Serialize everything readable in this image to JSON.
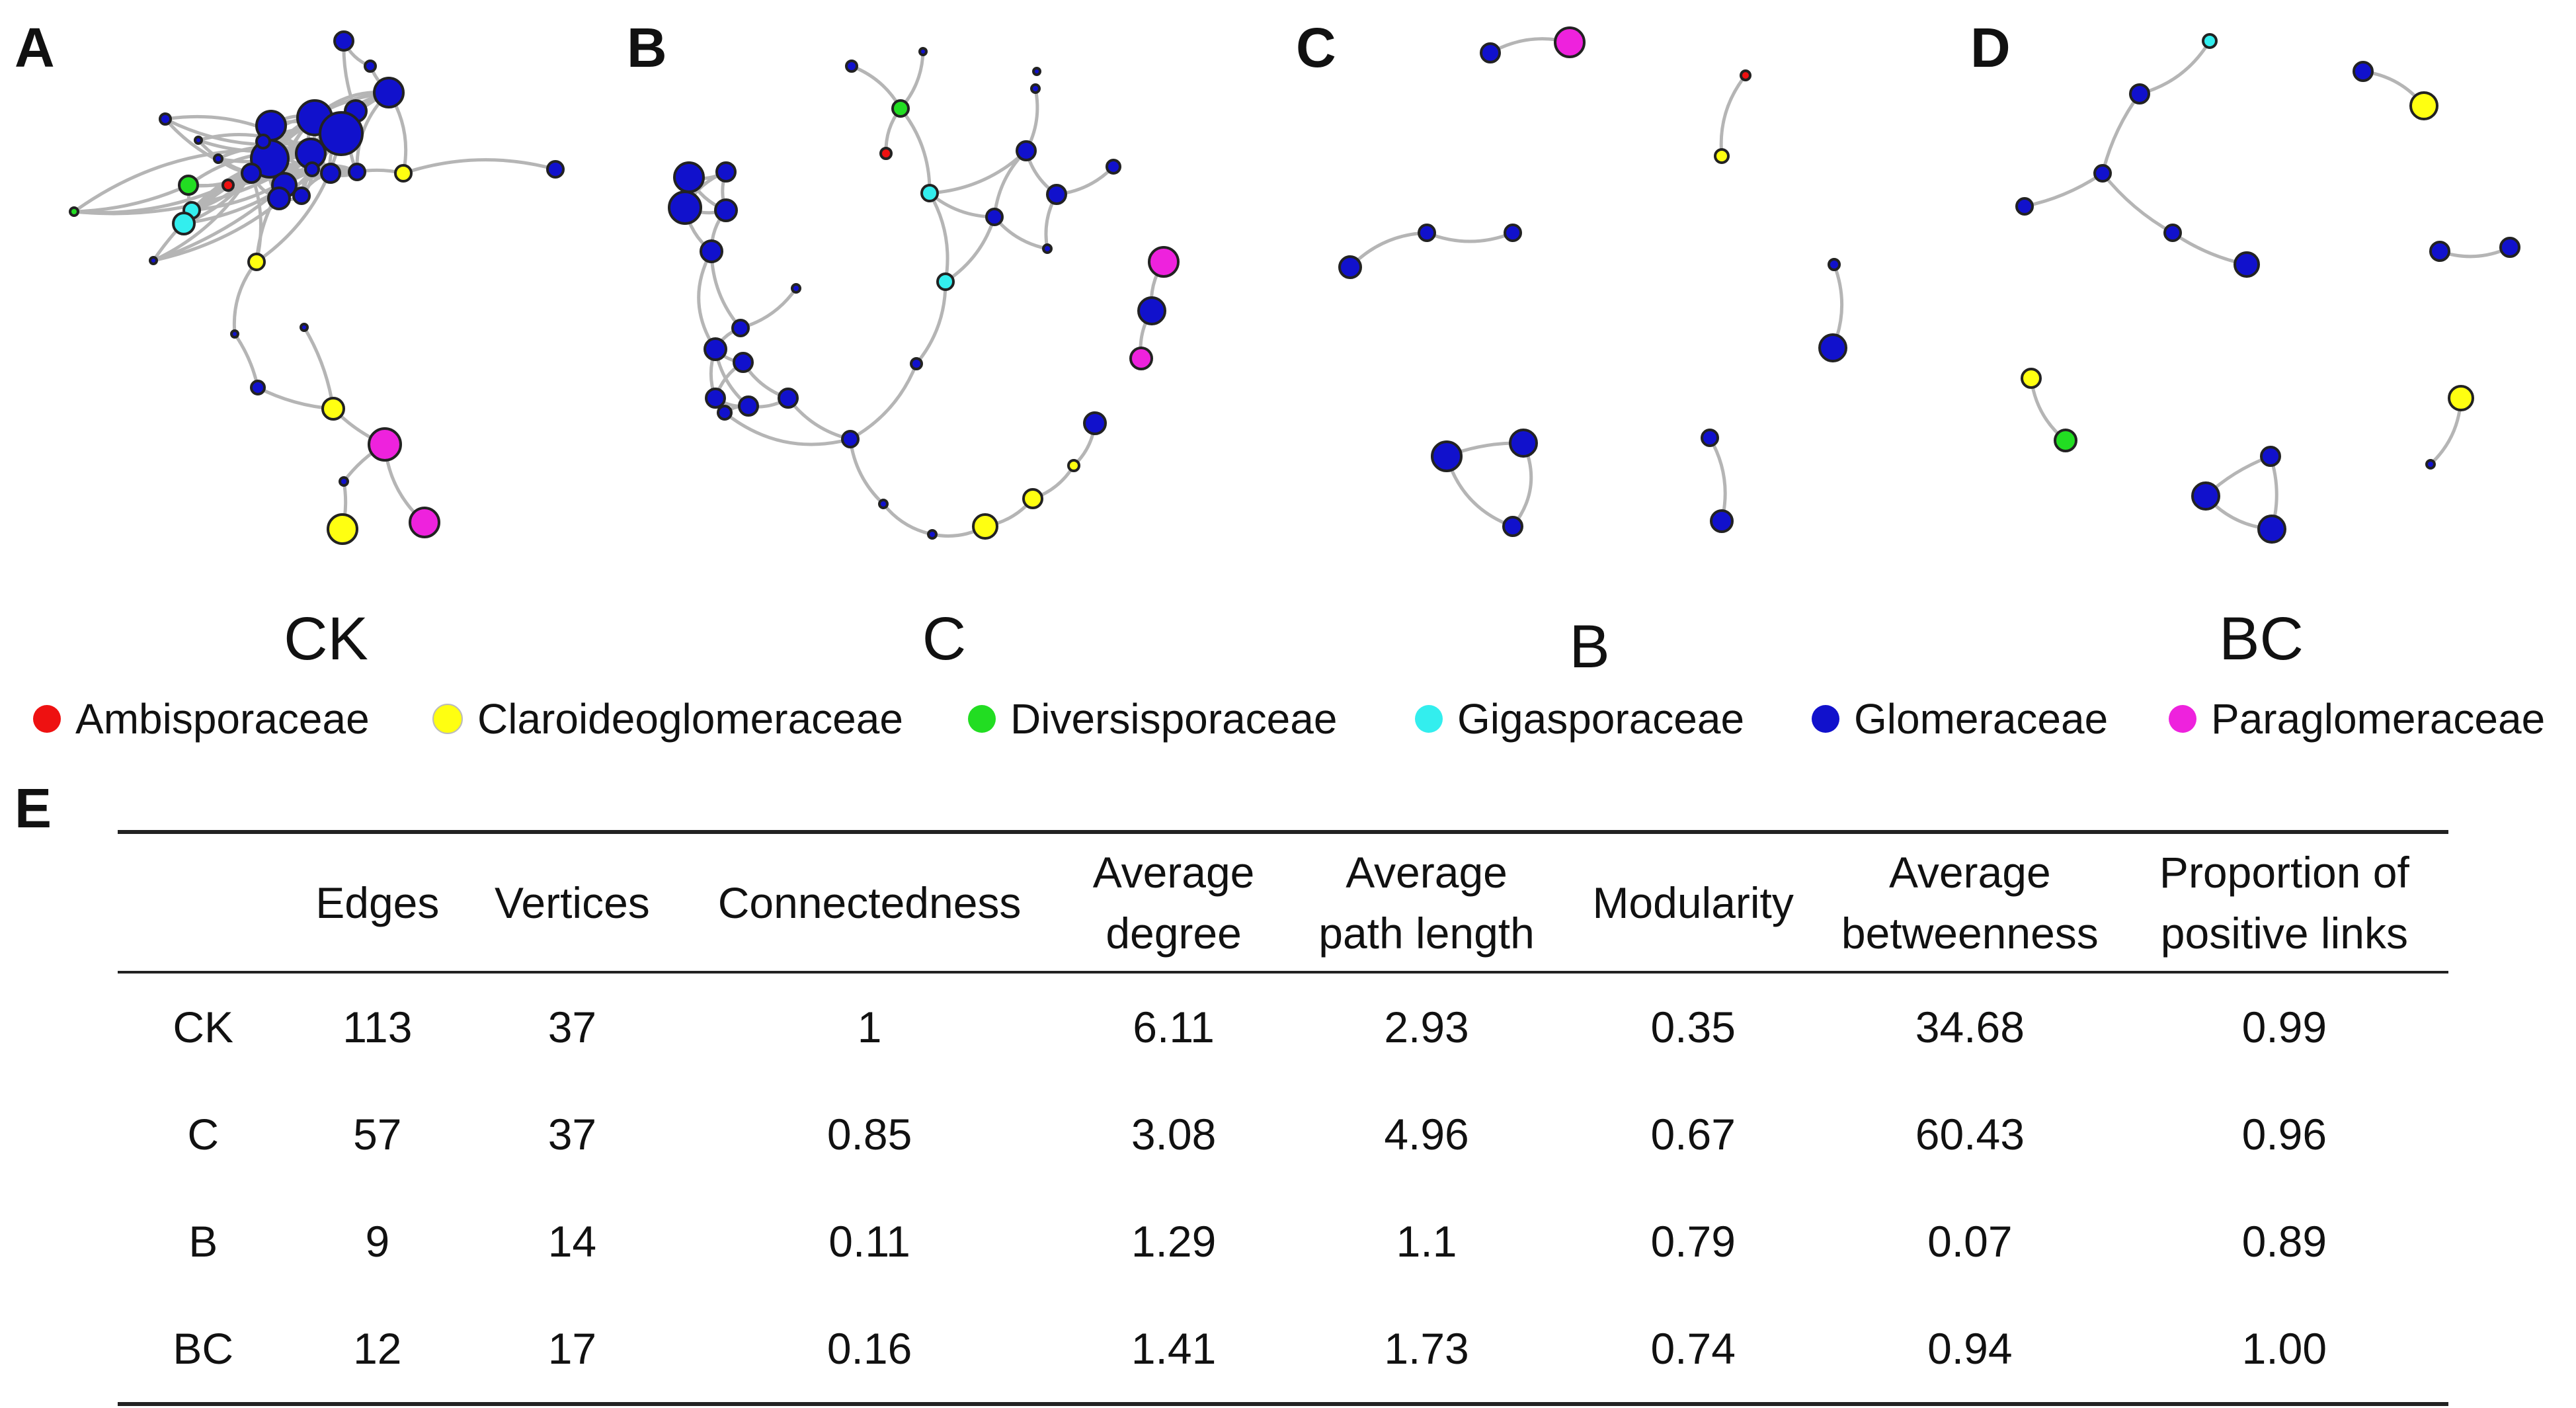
{
  "panels": {
    "A": {
      "letter": "A",
      "name": "CK"
    },
    "B": {
      "letter": "B",
      "name": "C"
    },
    "C": {
      "letter": "C",
      "name": "B"
    },
    "D": {
      "letter": "D",
      "name": "BC"
    },
    "E": {
      "letter": "E"
    }
  },
  "colors": {
    "Ambisporaceae": "#ee1111",
    "Claroideoglomeraceae": "#ffff11",
    "Diversisporaceae": "#22dd22",
    "Gigasporaceae": "#33eeee",
    "Glomeraceae": "#1111cc",
    "Paraglomeraceae": "#ee22dd",
    "edge": "#b5b5b5",
    "stroke": "#222222"
  },
  "legend": [
    {
      "label": "Ambisporaceae",
      "color": "#ee1111"
    },
    {
      "label": "Claroideoglomeraceae",
      "color": "#ffff11"
    },
    {
      "label": "Diversisporaceae",
      "color": "#22dd22"
    },
    {
      "label": "Gigasporaceae",
      "color": "#33eeee"
    },
    {
      "label": "Glomeraceae",
      "color": "#1111cc"
    },
    {
      "label": "Paraglomeraceae",
      "color": "#ee22dd"
    }
  ],
  "table": {
    "headers": [
      "",
      "Edges",
      "Vertices",
      "Connectedness",
      "Average degree",
      "Average path length",
      "Modularity",
      "Average betweenness",
      "Proportion of positive links"
    ],
    "rows": [
      [
        "CK",
        "113",
        "37",
        "1",
        "6.11",
        "2.93",
        "0.35",
        "34.68",
        "0.99"
      ],
      [
        "C",
        "57",
        "37",
        "0.85",
        "3.08",
        "4.96",
        "0.67",
        "60.43",
        "0.96"
      ],
      [
        "B",
        "9",
        "14",
        "0.11",
        "1.29",
        "1.1",
        "0.79",
        "0.07",
        "0.89"
      ],
      [
        "BC",
        "12",
        "17",
        "0.16",
        "1.41",
        "1.73",
        "0.74",
        "0.94",
        "1.00"
      ]
    ]
  }
}
